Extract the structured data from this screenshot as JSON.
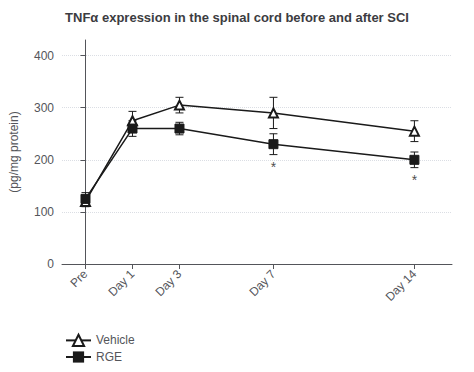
{
  "chart_data": {
    "type": "line",
    "title": "TNFα expression in the spinal cord before and after SCI",
    "ylabel": "(pg/mg protein)",
    "x": [
      0,
      1,
      2,
      4,
      7
    ],
    "xlim": [
      -0.5,
      7.8
    ],
    "xticks": [
      {
        "value": 0,
        "label": "Pre"
      },
      {
        "value": 1,
        "label": "Day 1"
      },
      {
        "value": 2,
        "label": "Day 3"
      },
      {
        "value": 4,
        "label": "Day 7"
      },
      {
        "value": 7,
        "label": "Day 14"
      }
    ],
    "ylim": [
      0,
      430
    ],
    "yticks": [
      0,
      100,
      200,
      300,
      400
    ],
    "grid": true,
    "legend": "bottom left",
    "series": [
      {
        "name": "Vehicle",
        "color": "#1a1a1a",
        "marker": "open_triangle",
        "values": [
          120,
          275,
          305,
          290,
          255
        ],
        "yerr": [
          10,
          18,
          15,
          30,
          20
        ]
      },
      {
        "name": "RGE",
        "color": "#1a1a1a",
        "marker": "square",
        "values": [
          125,
          260,
          260,
          230,
          200
        ],
        "yerr": [
          12,
          15,
          12,
          20,
          15
        ]
      }
    ],
    "annotations": [
      {
        "text": "*",
        "x": 4,
        "y": 204
      },
      {
        "text": "*",
        "x": 7,
        "y": 178
      }
    ]
  }
}
